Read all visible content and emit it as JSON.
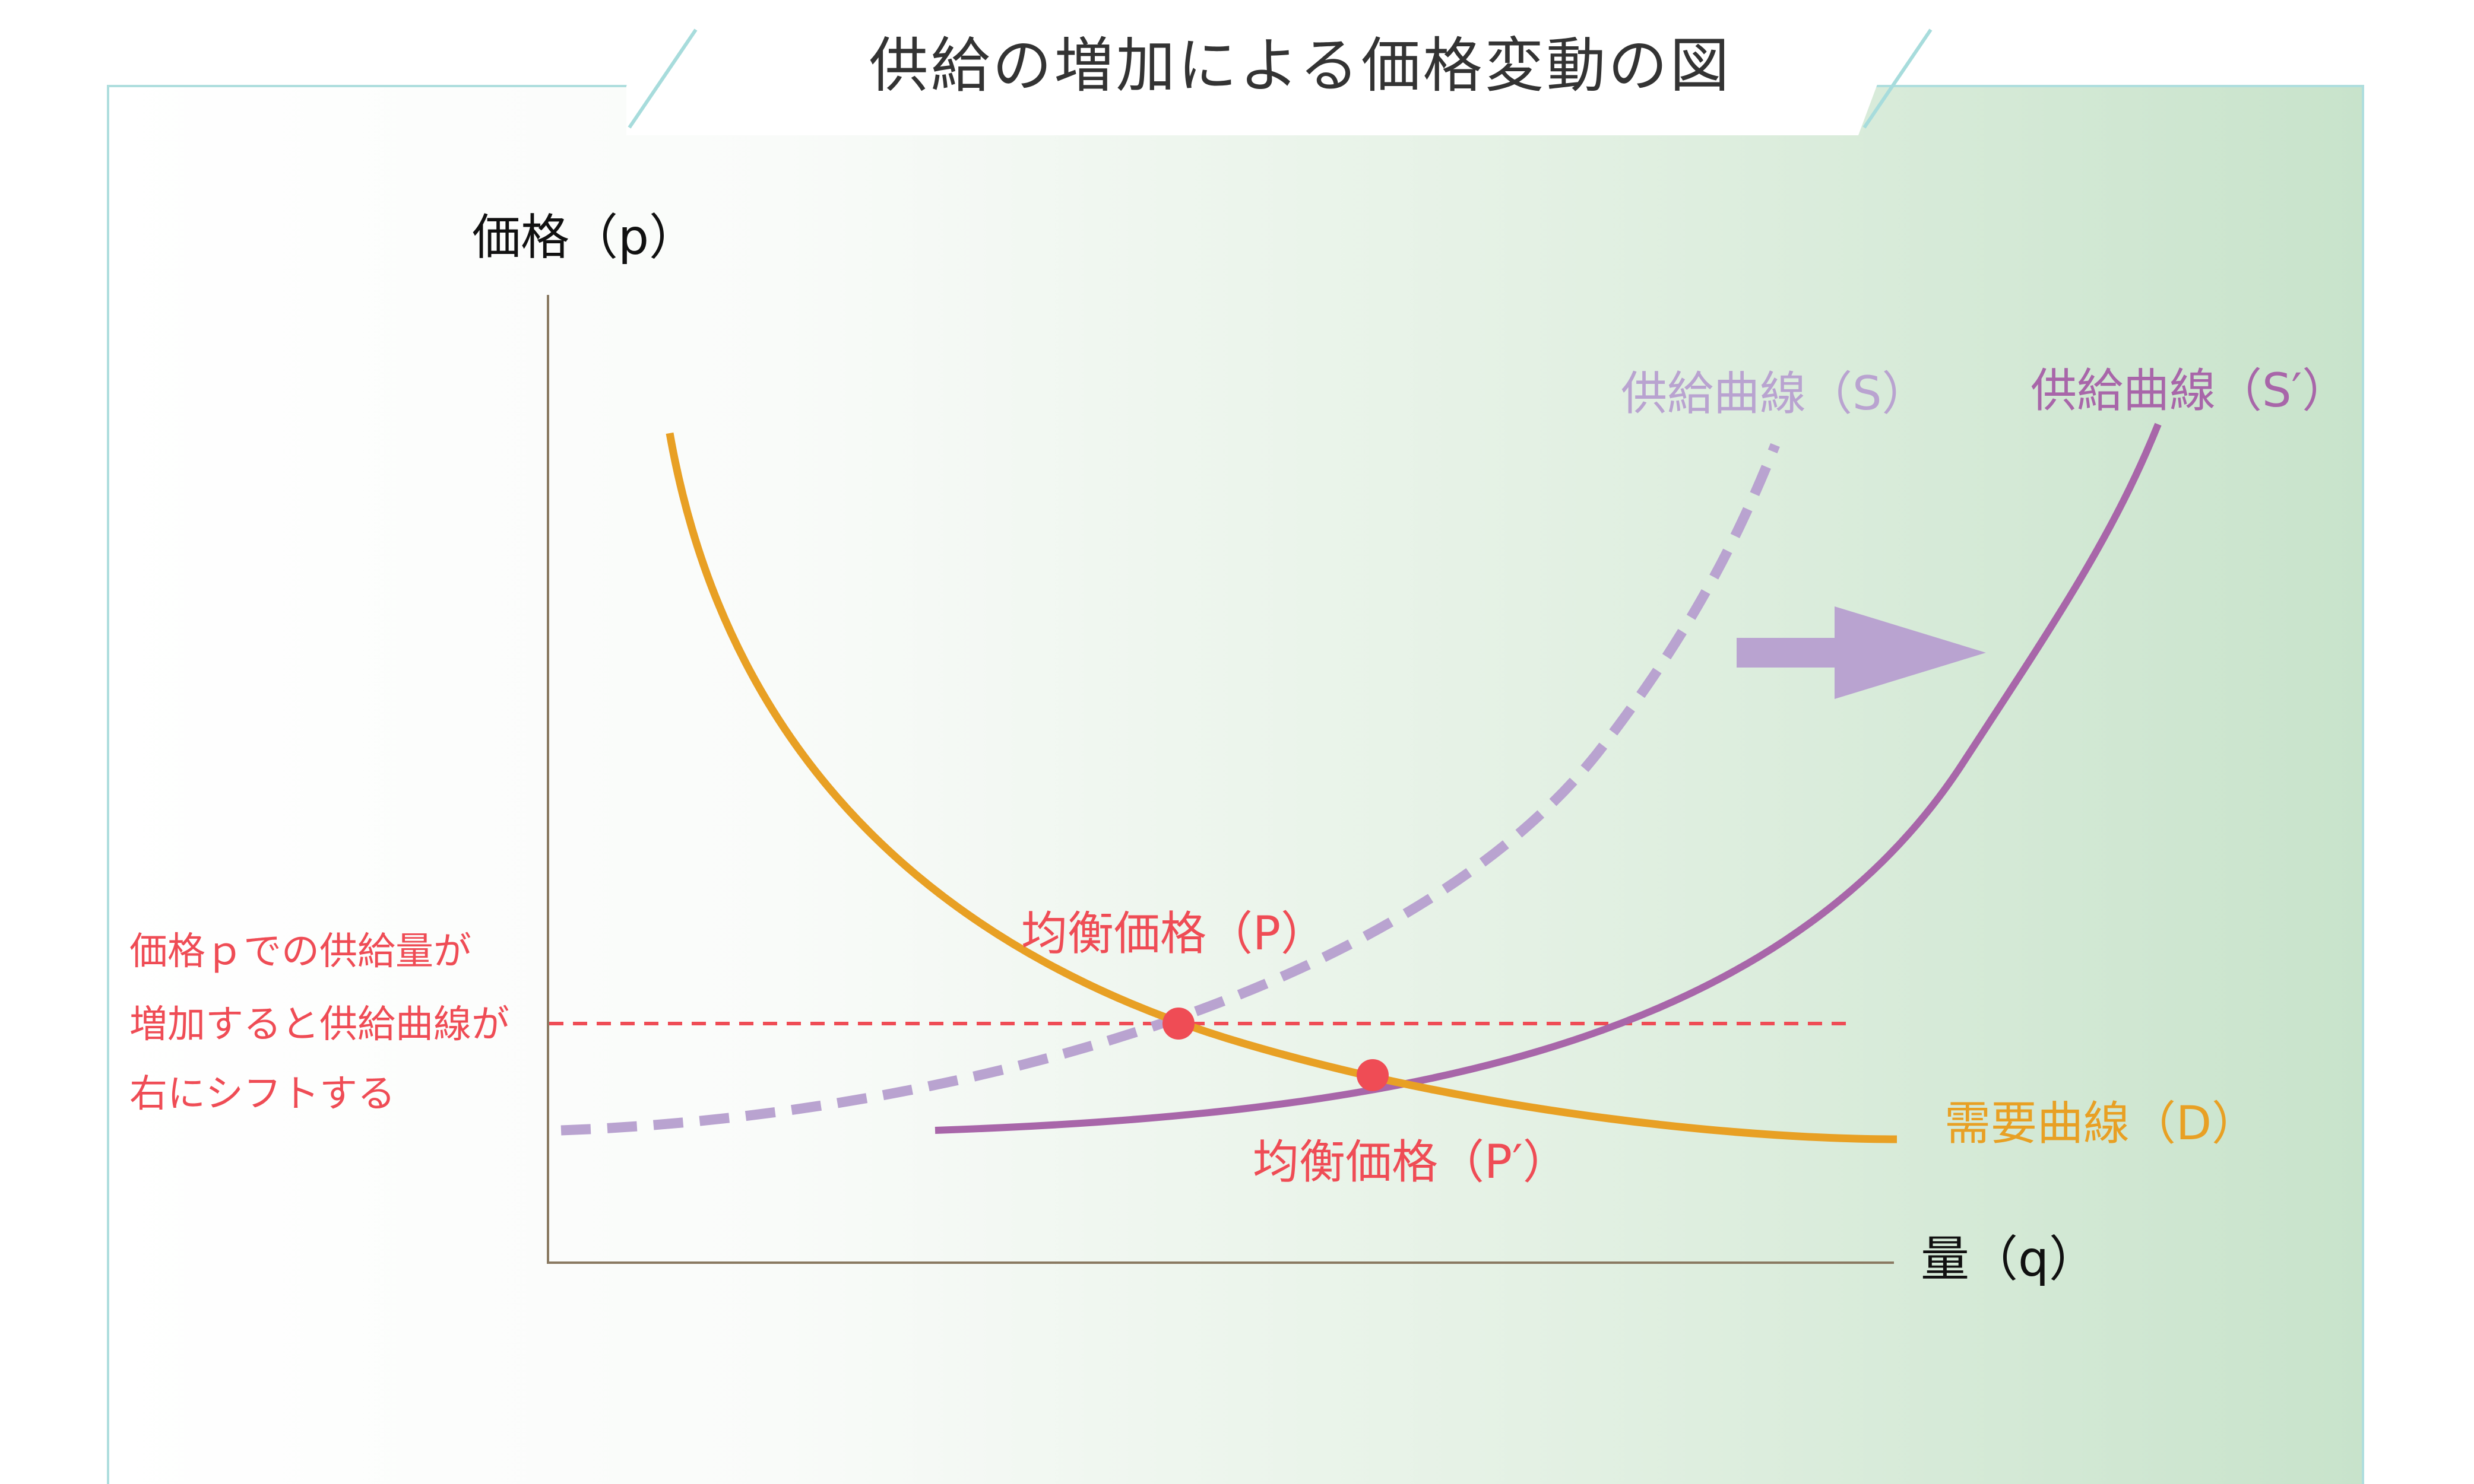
{
  "title": "供給の増加による価格変動の図",
  "axes": {
    "y_label": "価格（p）",
    "x_label": "量（q）"
  },
  "curves": {
    "supply_old": "供給曲線（S）",
    "supply_new": "供給曲線（S′）",
    "demand": "需要曲線（D）"
  },
  "equilibrium": {
    "old": "均衡価格（P）",
    "new": "均衡価格（P′）"
  },
  "annotation": {
    "lines": [
      "価格ｐでの供給量が",
      "増加すると供給曲線が",
      "右にシフトする"
    ]
  },
  "colors": {
    "demand": "#e8a024",
    "supply_old": "#b9a3d0",
    "supply_new": "#a866a9",
    "accent_red": "#ef4c55",
    "frame": "#aedede",
    "axis": "#8a7a62",
    "background_right": "#c8e3cb"
  },
  "icons": {
    "shift_arrow": "arrow-right-icon"
  }
}
